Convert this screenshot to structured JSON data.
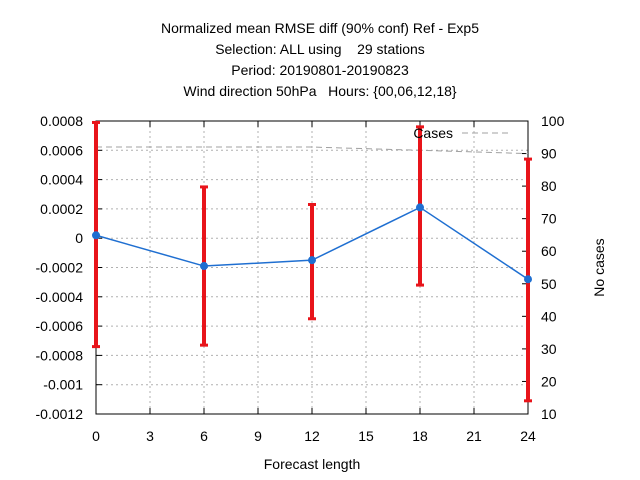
{
  "chart_data": {
    "type": "line",
    "title_lines": [
      "Normalized mean RMSE diff (90% conf) Ref - Exp5",
      "Selection: ALL using    29 stations",
      "Period: 20190801-20190823",
      "Wind direction 50hPa   Hours: {00,06,12,18}"
    ],
    "xlabel": "Forecast length",
    "ylabel": "",
    "y2label": "No cases",
    "xlim": [
      0,
      24
    ],
    "ylim": [
      -0.0012,
      0.0008
    ],
    "y2lim": [
      10,
      100
    ],
    "x_ticks": [
      "0",
      "3",
      "6",
      "9",
      "12",
      "15",
      "18",
      "21",
      "24"
    ],
    "y_ticks": [
      "0.0008",
      "0.0006",
      "0.0004",
      "0.0002",
      "0",
      "-0.0002",
      "-0.0004",
      "-0.0006",
      "-0.0008",
      "-0.001",
      "-0.0012"
    ],
    "y2_ticks": [
      "100",
      "90",
      "80",
      "70",
      "60",
      "50",
      "40",
      "30",
      "20",
      "10"
    ],
    "grid": true,
    "legend": "top-right",
    "series": [
      {
        "color": "#1f6fd1",
        "x": [
          0,
          6,
          12,
          18,
          24
        ],
        "y": [
          2e-05,
          -0.00019,
          -0.00015,
          0.00021,
          -0.00028
        ],
        "error_low": [
          -0.00074,
          -0.00073,
          -0.00055,
          -0.00032,
          -0.00111
        ],
        "error_high": [
          0.00079,
          0.00035,
          0.00023,
          0.00076,
          0.00054
        ],
        "error_color": "#e8141a"
      },
      {
        "name": "Cases",
        "axis": "right",
        "color": "#a0a0a0",
        "style": "dashed",
        "x": [
          0,
          6,
          12,
          18,
          24
        ],
        "y": [
          92,
          92,
          92,
          91,
          90
        ]
      }
    ]
  }
}
